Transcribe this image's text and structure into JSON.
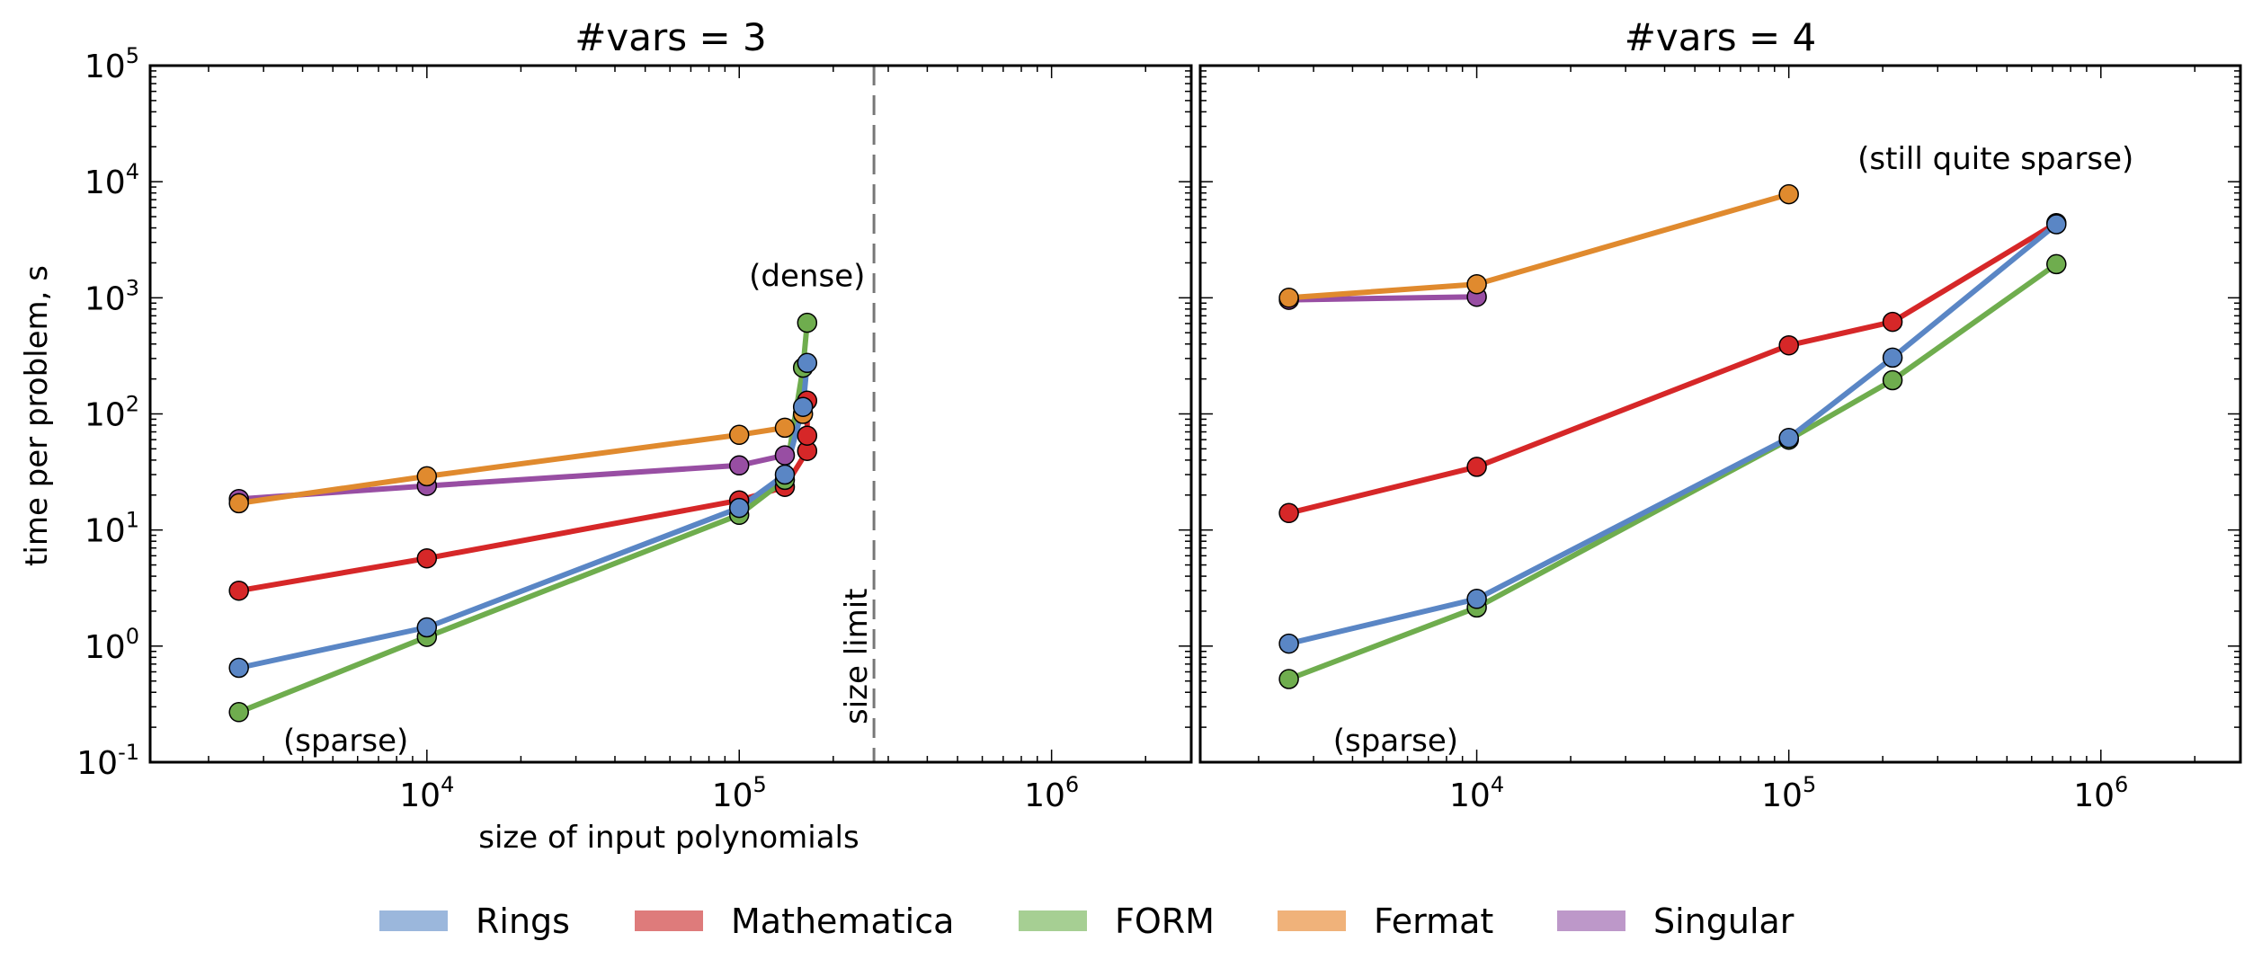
{
  "chart_data": [
    {
      "type": "line",
      "title": "#vars = 3",
      "xlabel": "size of input polynomials",
      "ylabel": "time per problem, s",
      "xscale": "log",
      "yscale": "log",
      "xlim": [
        1300,
        2800000
      ],
      "ylim": [
        0.1,
        100000
      ],
      "x_ticks": [
        {
          "value": 10000,
          "base": "10",
          "exp": "4"
        },
        {
          "value": 100000,
          "base": "10",
          "exp": "5"
        },
        {
          "value": 1000000,
          "base": "10",
          "exp": "6"
        }
      ],
      "y_ticks": [
        {
          "value": 0.1,
          "base": "10",
          "exp": "-1"
        },
        {
          "value": 1,
          "base": "10",
          "exp": "0"
        },
        {
          "value": 10,
          "base": "10",
          "exp": "1"
        },
        {
          "value": 100,
          "base": "10",
          "exp": "2"
        },
        {
          "value": 1000,
          "base": "10",
          "exp": "3"
        },
        {
          "value": 10000,
          "base": "10",
          "exp": "4"
        },
        {
          "value": 100000,
          "base": "10",
          "exp": "5"
        }
      ],
      "vline": {
        "x": 270000,
        "label": "size limit"
      },
      "annotations": [
        {
          "text": "(dense)",
          "x": 165000,
          "y": 1550
        },
        {
          "text": "(sparse)",
          "x": 5500,
          "y": 0.155
        }
      ],
      "series": [
        {
          "name": "Singular",
          "color": "#984ea3",
          "x": [
            2500,
            10000,
            100000,
            140000
          ],
          "y": [
            18.5,
            24,
            36,
            44
          ]
        },
        {
          "name": "Fermat",
          "color": "#e08a2e",
          "x": [
            2500,
            10000,
            100000,
            140000,
            160000
          ],
          "y": [
            17,
            29,
            66,
            76,
            100
          ]
        },
        {
          "name": "Mathematica",
          "color": "#d62728",
          "x": [
            2500,
            10000,
            100000,
            140000,
            165000,
            165000,
            165000
          ],
          "y": [
            3,
            5.7,
            18,
            23.5,
            48,
            65,
            130
          ]
        },
        {
          "name": "FORM",
          "color": "#6fad4e",
          "x": [
            2500,
            10000,
            100000,
            140000,
            160000,
            165000
          ],
          "y": [
            0.27,
            1.2,
            13.5,
            27,
            250,
            610
          ]
        },
        {
          "name": "Rings",
          "color": "#5a86c5",
          "x": [
            2500,
            10000,
            100000,
            140000,
            160000,
            165000
          ],
          "y": [
            0.65,
            1.45,
            15.5,
            30,
            115,
            275
          ]
        }
      ]
    },
    {
      "type": "line",
      "title": "#vars = 4",
      "xlabel": "",
      "ylabel": "",
      "xscale": "log",
      "yscale": "log",
      "xlim": [
        1300,
        2800000
      ],
      "ylim": [
        0.1,
        100000
      ],
      "x_ticks": [
        {
          "value": 10000,
          "base": "10",
          "exp": "4"
        },
        {
          "value": 100000,
          "base": "10",
          "exp": "5"
        },
        {
          "value": 1000000,
          "base": "10",
          "exp": "6"
        }
      ],
      "annotations": [
        {
          "text": "(still quite sparse)",
          "x": 460000,
          "y": 16000
        },
        {
          "text": "(sparse)",
          "x": 5500,
          "y": 0.155
        }
      ],
      "series": [
        {
          "name": "Singular",
          "color": "#984ea3",
          "x": [
            2500,
            10000
          ],
          "y": [
            960,
            1020
          ]
        },
        {
          "name": "Fermat",
          "color": "#e08a2e",
          "x": [
            2500,
            10000,
            100000
          ],
          "y": [
            1000,
            1310,
            7800
          ]
        },
        {
          "name": "Mathematica",
          "color": "#d62728",
          "x": [
            2500,
            10000,
            100000,
            215000,
            720000
          ],
          "y": [
            14,
            35,
            390,
            620,
            4400
          ]
        },
        {
          "name": "FORM",
          "color": "#6fad4e",
          "x": [
            2500,
            10000,
            100000,
            215000,
            720000
          ],
          "y": [
            0.52,
            2.15,
            60,
            195,
            1950
          ]
        },
        {
          "name": "Rings",
          "color": "#5a86c5",
          "x": [
            2500,
            10000,
            100000,
            215000,
            720000
          ],
          "y": [
            1.05,
            2.55,
            62,
            305,
            4300
          ]
        }
      ]
    }
  ],
  "legend": {
    "placement": "bottom-center",
    "items": [
      {
        "label": "Rings",
        "color": "#9bb7dc"
      },
      {
        "label": "Mathematica",
        "color": "#de7b7b"
      },
      {
        "label": "FORM",
        "color": "#a6cf93"
      },
      {
        "label": "Fermat",
        "color": "#f0b27a"
      },
      {
        "label": "Singular",
        "color": "#bd98c9"
      }
    ]
  }
}
